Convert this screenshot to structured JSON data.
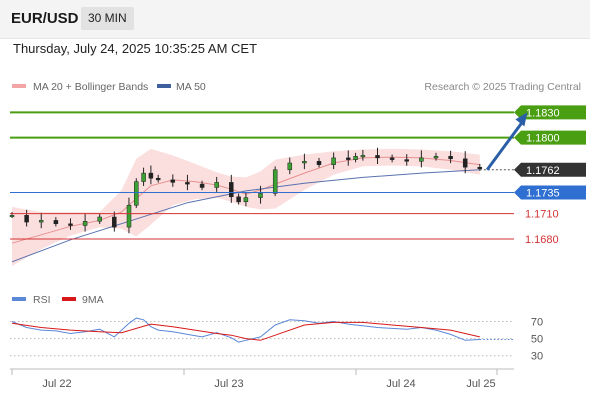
{
  "header": {
    "symbol": "EUR/USD",
    "timeframe": "30 MIN",
    "datetime": "Thursday, July 24, 2025 10:35:25 AM CET"
  },
  "legend": {
    "ma20_bb": "MA 20 + Bollinger Bands",
    "ma50": "MA 50",
    "rsi": "RSI",
    "rsi_ma": "9MA"
  },
  "watermark": "Research © 2025 Trading Central",
  "colors": {
    "resistance": "#4a9e12",
    "current": "#333333",
    "support_blue": "#2f6fd1",
    "support_red": "#d33333",
    "bands": "#f7c5c5",
    "ma20": "#e89090",
    "ma50": "#5872ae",
    "rsi": "#5b88d8",
    "rsi_ma": "#d81818",
    "arrow": "#2a5fa8"
  },
  "chart_data": [
    {
      "type": "line",
      "title": "",
      "x_ticks": [
        "Jul 22",
        "Jul 23",
        "Jul 24",
        "Jul 25"
      ],
      "ylim": [
        1.1648,
        1.1847
      ],
      "levels": [
        {
          "value": 1.183,
          "label": "1.1830",
          "kind": "resistance"
        },
        {
          "value": 1.18,
          "label": "1.1800",
          "kind": "resistance"
        },
        {
          "value": 1.1762,
          "label": "1.1762",
          "kind": "current"
        },
        {
          "value": 1.1735,
          "label": "1.1735",
          "kind": "support_blue"
        },
        {
          "value": 1.171,
          "label": "1.1710",
          "kind": "support_red"
        },
        {
          "value": 1.168,
          "label": "1.1680",
          "kind": "support_red"
        }
      ],
      "series": [
        {
          "name": "EUR/USD",
          "time": [
            0,
            4,
            8,
            12,
            16,
            20,
            24,
            28,
            32,
            34,
            36,
            38,
            40,
            44,
            48,
            52,
            56,
            60,
            62,
            64,
            68,
            72,
            76,
            80,
            84,
            88,
            92,
            94,
            96,
            100,
            104,
            108,
            112,
            116,
            120,
            124,
            128
          ],
          "values": [
            1.1708,
            1.17,
            1.1702,
            1.1698,
            1.1696,
            1.1701,
            1.1706,
            1.1694,
            1.172,
            1.1748,
            1.1758,
            1.1752,
            1.175,
            1.1747,
            1.1745,
            1.1741,
            1.1747,
            1.173,
            1.1724,
            1.1729,
            1.1734,
            1.1762,
            1.177,
            1.1772,
            1.1768,
            1.1776,
            1.1774,
            1.1778,
            1.1779,
            1.1776,
            1.1774,
            1.1772,
            1.1776,
            1.1778,
            1.1775,
            1.1765,
            1.1764
          ]
        },
        {
          "name": "MA 20",
          "time": [
            0,
            8,
            16,
            24,
            30,
            34,
            38,
            44,
            50,
            56,
            60,
            64,
            68,
            72,
            80,
            88,
            96,
            104,
            112,
            120,
            128
          ],
          "values": [
            1.1675,
            1.1685,
            1.1695,
            1.1702,
            1.1712,
            1.1728,
            1.1743,
            1.175,
            1.1748,
            1.1744,
            1.1739,
            1.1733,
            1.1738,
            1.1745,
            1.1758,
            1.177,
            1.1776,
            1.1777,
            1.1776,
            1.1773,
            1.1768
          ]
        },
        {
          "name": "Bollinger upper",
          "time": [
            0,
            8,
            16,
            24,
            30,
            34,
            38,
            44,
            50,
            56,
            60,
            64,
            68,
            72,
            80,
            88,
            96,
            104,
            112,
            120,
            128
          ],
          "values": [
            1.1718,
            1.1712,
            1.1712,
            1.1712,
            1.1738,
            1.1775,
            1.1787,
            1.1779,
            1.1769,
            1.1759,
            1.1754,
            1.1753,
            1.176,
            1.1774,
            1.178,
            1.1784,
            1.1786,
            1.1787,
            1.1786,
            1.1784,
            1.178
          ]
        },
        {
          "name": "Bollinger lower",
          "time": [
            0,
            8,
            16,
            24,
            30,
            34,
            38,
            44,
            50,
            56,
            60,
            64,
            68,
            72,
            80,
            88,
            96,
            104,
            112,
            120,
            128
          ],
          "values": [
            1.1648,
            1.1668,
            1.1684,
            1.1694,
            1.1692,
            1.1683,
            1.1697,
            1.172,
            1.1727,
            1.1729,
            1.1724,
            1.1718,
            1.1715,
            1.1716,
            1.1738,
            1.1756,
            1.1766,
            1.1767,
            1.1766,
            1.1762,
            1.1756
          ]
        },
        {
          "name": "MA 50",
          "time": [
            0,
            16,
            32,
            48,
            64,
            80,
            96,
            112,
            128
          ],
          "values": [
            1.1653,
            1.1679,
            1.1701,
            1.1723,
            1.1737,
            1.1746,
            1.1753,
            1.1758,
            1.1762
          ]
        }
      ],
      "projection": {
        "from": {
          "time": 130,
          "value": 1.1762
        },
        "to": {
          "time": 141,
          "value": 1.183
        }
      }
    },
    {
      "type": "line",
      "title": "",
      "y_ticks": [
        70,
        50,
        30
      ],
      "ylim": [
        25,
        80
      ],
      "series": [
        {
          "name": "RSI",
          "time": [
            0,
            4,
            8,
            12,
            16,
            20,
            24,
            28,
            32,
            34,
            36,
            38,
            40,
            44,
            48,
            52,
            56,
            60,
            62,
            64,
            68,
            72,
            76,
            80,
            84,
            88,
            92,
            94,
            96,
            100,
            104,
            108,
            112,
            116,
            120,
            124,
            128
          ],
          "values": [
            70,
            63,
            60,
            59,
            56,
            58,
            61,
            52,
            68,
            74,
            72,
            64,
            60,
            58,
            55,
            52,
            57,
            51,
            46,
            48,
            52,
            66,
            72,
            71,
            68,
            70,
            67,
            66,
            65,
            63,
            62,
            61,
            63,
            60,
            55,
            48,
            49
          ]
        },
        {
          "name": "9MA",
          "time": [
            0,
            8,
            16,
            24,
            30,
            34,
            38,
            44,
            50,
            56,
            60,
            64,
            68,
            72,
            80,
            88,
            96,
            104,
            112,
            120,
            128
          ],
          "values": [
            68,
            63,
            60,
            58,
            57,
            62,
            67,
            64,
            60,
            56,
            54,
            50,
            48,
            54,
            66,
            69,
            69,
            66,
            63,
            60,
            52
          ]
        }
      ]
    }
  ]
}
